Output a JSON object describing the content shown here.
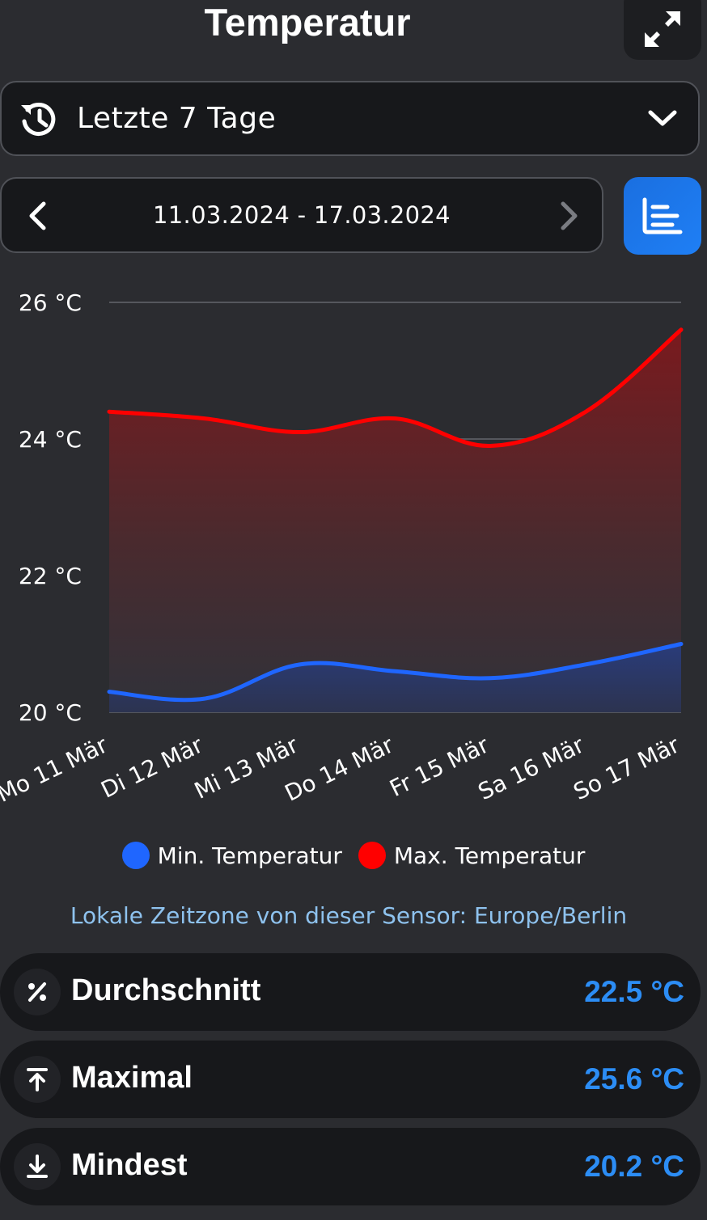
{
  "header": {
    "title": "Temperatur",
    "expand_icon": "expand-arrows-icon"
  },
  "range_select": {
    "icon": "history-icon",
    "label": "Letzte 7 Tage",
    "chevron": "chevron-down-icon"
  },
  "date_nav": {
    "range": "11.03.2024 - 17.03.2024",
    "prev_icon": "chevron-left-icon",
    "next_icon": "chevron-right-icon"
  },
  "chart_toggle": {
    "icon": "bar-chart-icon"
  },
  "colors": {
    "min": "#1f66ff",
    "max": "#ff0000",
    "accent": "#2c8df5",
    "timezone_text": "#8ec2ee"
  },
  "chart_data": {
    "type": "area",
    "title": "",
    "xlabel": "",
    "ylabel": "",
    "ylim": [
      20,
      26
    ],
    "yticks": [
      20,
      22,
      24,
      26
    ],
    "ytick_labels": [
      "20 °C",
      "22 °C",
      "24 °C",
      "26 °C"
    ],
    "categories": [
      "Mo 11 Mär",
      "Di 12 Mär",
      "Mi 13 Mär",
      "Do 14 Mär",
      "Fr 15 Mär",
      "Sa 16 Mär",
      "So 17 Mär"
    ],
    "series": [
      {
        "name": "Min. Temperatur",
        "color": "#1f66ff",
        "values": [
          20.3,
          20.2,
          20.7,
          20.6,
          20.5,
          20.7,
          21.0
        ]
      },
      {
        "name": "Max. Temperatur",
        "color": "#ff0000",
        "values": [
          24.4,
          24.3,
          24.1,
          24.3,
          23.9,
          24.4,
          25.6
        ]
      }
    ],
    "grid": true,
    "legend": "bottom"
  },
  "timezone_note": "Lokale Zeitzone von dieser Sensor: Europe/Berlin",
  "stats": [
    {
      "icon": "percent-icon",
      "label": "Durchschnitt",
      "value": "22.5 °C"
    },
    {
      "icon": "arrow-up-to-line-icon",
      "label": "Maximal",
      "value": "25.6 °C"
    },
    {
      "icon": "arrow-down-to-line-icon",
      "label": "Mindest",
      "value": "20.2 °C"
    }
  ]
}
